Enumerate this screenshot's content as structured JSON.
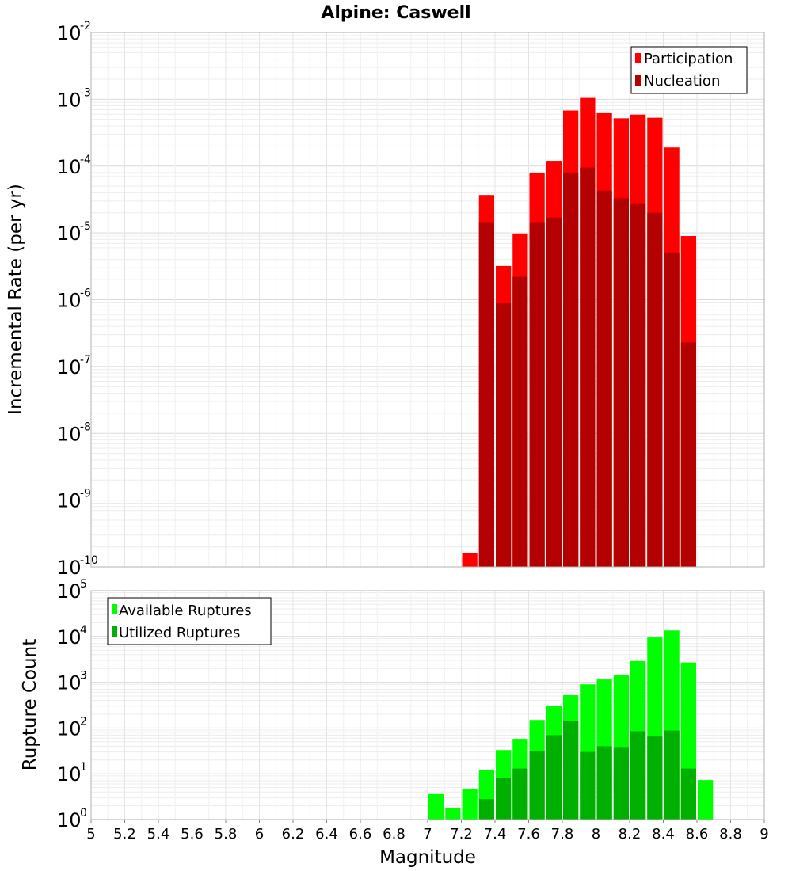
{
  "title": "Alpine: Caswell",
  "chart_data": [
    {
      "type": "bar",
      "ylabel": "Incremental Rate (per yr)",
      "yscale": "log",
      "ylim_exp": [
        -10,
        -2
      ],
      "legend_position": "top-right",
      "series": [
        {
          "name": "Participation",
          "color": "#ff0000",
          "x": [
            7.25,
            7.35,
            7.45,
            7.55,
            7.65,
            7.75,
            7.85,
            7.95,
            8.05,
            8.15,
            8.25,
            8.35,
            8.45,
            8.55
          ],
          "values": [
            1.6e-10,
            3.7e-05,
            3.2e-06,
            9.8e-06,
            8e-05,
            0.00012,
            0.00068,
            0.00105,
            0.00062,
            0.00052,
            0.00059,
            0.00053,
            0.00019,
            9e-06
          ]
        },
        {
          "name": "Nucleation",
          "color": "#b30000",
          "x": [
            7.35,
            7.45,
            7.55,
            7.65,
            7.75,
            7.85,
            7.95,
            8.05,
            8.15,
            8.25,
            8.35,
            8.45,
            8.55
          ],
          "values": [
            1.45e-05,
            8.8e-07,
            2.2e-06,
            1.45e-05,
            1.7e-05,
            7.8e-05,
            9.5e-05,
            4.3e-05,
            3.3e-05,
            2.7e-05,
            2e-05,
            5.1e-06,
            2.3e-07
          ]
        }
      ]
    },
    {
      "type": "bar",
      "xlabel": "Magnitude",
      "ylabel": "Rupture Count",
      "yscale": "log",
      "ylim_exp": [
        0,
        5
      ],
      "legend_position": "top-left",
      "series": [
        {
          "name": "Available Ruptures",
          "color": "#00ff00",
          "x": [
            6.95,
            7.05,
            7.15,
            7.25,
            7.35,
            7.45,
            7.55,
            7.65,
            7.75,
            7.85,
            7.95,
            8.05,
            8.15,
            8.25,
            8.35,
            8.45,
            8.55,
            8.65
          ],
          "values": [
            1,
            3.6,
            1.8,
            4.6,
            12,
            33,
            58,
            150,
            300,
            520,
            900,
            1150,
            1450,
            2900,
            9500,
            13500,
            2700,
            7.3
          ]
        },
        {
          "name": "Utilized Ruptures",
          "color": "#00b000",
          "x": [
            7.15,
            7.25,
            7.35,
            7.45,
            7.55,
            7.65,
            7.75,
            7.85,
            7.95,
            8.05,
            8.15,
            8.25,
            8.35,
            8.45,
            8.55
          ],
          "values": [
            1,
            1,
            2.8,
            8,
            13,
            32,
            70,
            145,
            30,
            40,
            37,
            85,
            65,
            88,
            13
          ]
        }
      ]
    }
  ],
  "xaxis": {
    "xlim": [
      5,
      9
    ],
    "tick_labels": [
      "5",
      "5.2",
      "5.4",
      "5.6",
      "5.8",
      "6",
      "6.2",
      "6.4",
      "6.6",
      "6.8",
      "7",
      "7.2",
      "7.4",
      "7.6",
      "7.8",
      "8",
      "8.2",
      "8.4",
      "8.6",
      "8.8",
      "9"
    ]
  }
}
